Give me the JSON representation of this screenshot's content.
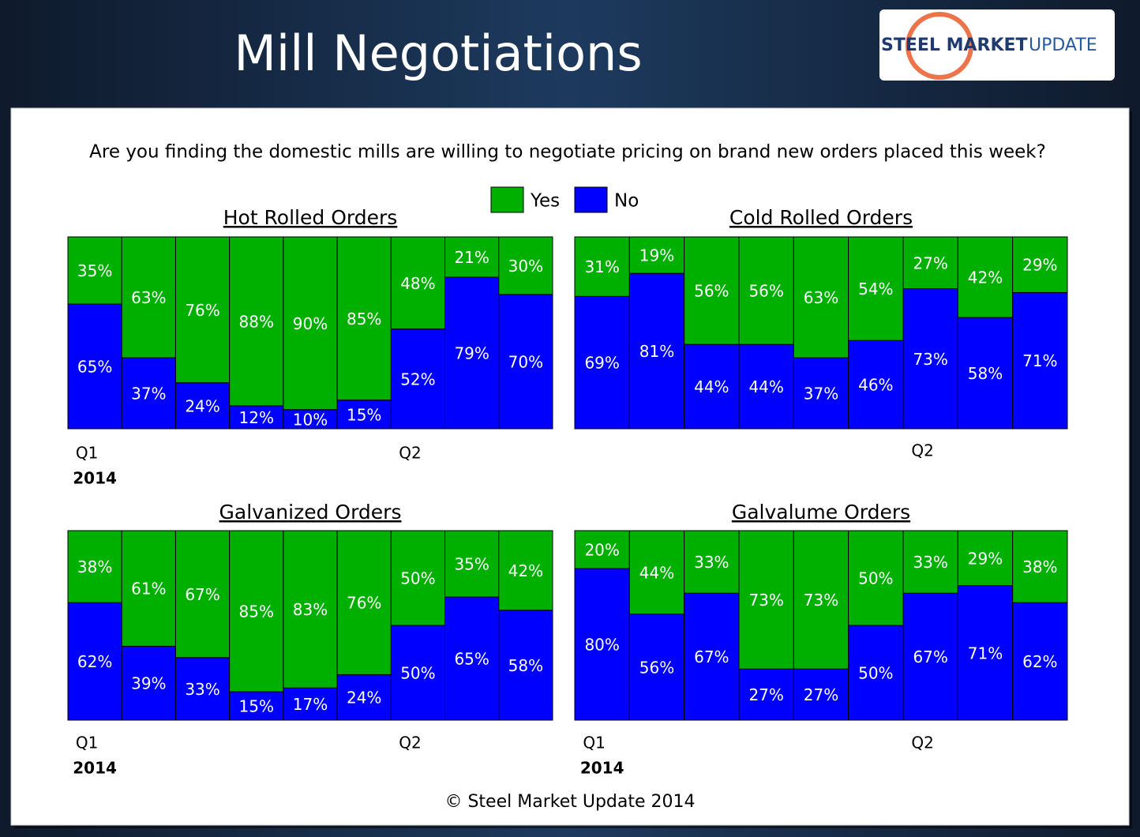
{
  "header": {
    "title": "Mill Negotiations",
    "logo": {
      "bold": "STEEL MARKET",
      "light": "UPDATE"
    }
  },
  "question": "Are you finding the domestic mills are willing to negotiate pricing on brand new orders placed this week?",
  "footer": "© Steel Market Update 2014",
  "chart_data": [
    {
      "type": "bar",
      "stacked": true,
      "title": "Hot Rolled Orders",
      "categories": [
        "Q1",
        null,
        null,
        null,
        null,
        null,
        "Q2",
        null,
        null
      ],
      "year_label": "2014",
      "ylim": [
        0,
        100
      ],
      "series": [
        {
          "name": "Yes",
          "color": "#00b000",
          "values": [
            35,
            63,
            76,
            88,
            90,
            85,
            48,
            21,
            30
          ],
          "value_labels": [
            "35%",
            "63%",
            "76%",
            "88%",
            "90%",
            "85%",
            "48%",
            "21%",
            "30%"
          ]
        },
        {
          "name": "No",
          "color": "#0000ff",
          "values": [
            65,
            37,
            24,
            12,
            10,
            15,
            52,
            79,
            70
          ],
          "value_labels": [
            "65%",
            "37%",
            "24%",
            "12%",
            "10%",
            "15%",
            "52%",
            "79%",
            "70%"
          ]
        }
      ]
    },
    {
      "type": "bar",
      "stacked": true,
      "title": "Cold Rolled Orders",
      "categories": [
        null,
        null,
        null,
        null,
        null,
        null,
        "Q2",
        null,
        null
      ],
      "ylim": [
        0,
        100
      ],
      "series": [
        {
          "name": "Yes",
          "color": "#00b000",
          "values": [
            31,
            19,
            56,
            56,
            63,
            54,
            27,
            42,
            29
          ],
          "value_labels": [
            "31%",
            "19%",
            "56%",
            "56%",
            "63%",
            "54%",
            "27%",
            "42%",
            "29%"
          ]
        },
        {
          "name": "No",
          "color": "#0000ff",
          "values": [
            69,
            81,
            44,
            44,
            37,
            46,
            73,
            58,
            71
          ],
          "value_labels": [
            "69%",
            "81%",
            "44%",
            "44%",
            "37%",
            "46%",
            "73%",
            "58%",
            "71%"
          ]
        }
      ]
    },
    {
      "type": "bar",
      "stacked": true,
      "title": "Galvanized Orders",
      "categories": [
        "Q1",
        null,
        null,
        null,
        null,
        null,
        "Q2",
        null,
        null
      ],
      "year_label": "2014",
      "ylim": [
        0,
        100
      ],
      "series": [
        {
          "name": "Yes",
          "color": "#00b000",
          "values": [
            38,
            61,
            67,
            85,
            83,
            76,
            50,
            35,
            42
          ],
          "value_labels": [
            "38%",
            "61%",
            "67%",
            "85%",
            "83%",
            "76%",
            "50%",
            "35%",
            "42%"
          ]
        },
        {
          "name": "No",
          "color": "#0000ff",
          "values": [
            62,
            39,
            33,
            15,
            17,
            24,
            50,
            65,
            58
          ],
          "value_labels": [
            "62%",
            "39%",
            "33%",
            "15%",
            "17%",
            "24%",
            "50%",
            "65%",
            "58%"
          ]
        }
      ]
    },
    {
      "type": "bar",
      "stacked": true,
      "title": "Galvalume Orders",
      "categories": [
        "Q1",
        null,
        null,
        null,
        null,
        null,
        "Q2",
        null,
        null
      ],
      "year_label": "2014",
      "ylim": [
        0,
        100
      ],
      "series": [
        {
          "name": "Yes",
          "color": "#00b000",
          "values": [
            20,
            44,
            33,
            73,
            73,
            50,
            33,
            29,
            38
          ],
          "value_labels": [
            "20%",
            "44%",
            "33%",
            "73%",
            "73%",
            "50%",
            "33%",
            "29%",
            "38%"
          ]
        },
        {
          "name": "No",
          "color": "#0000ff",
          "values": [
            80,
            56,
            67,
            27,
            27,
            50,
            67,
            71,
            62
          ],
          "value_labels": [
            "80%",
            "56%",
            "67%",
            "27%",
            "27%",
            "50%",
            "67%",
            "71%",
            "62%"
          ]
        }
      ]
    }
  ]
}
